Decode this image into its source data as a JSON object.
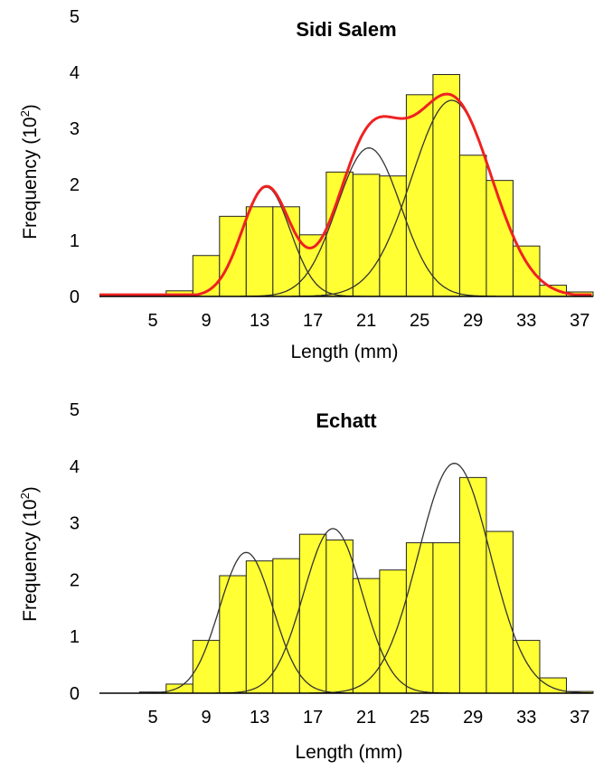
{
  "chart_data": [
    {
      "type": "bar",
      "title": "Sidi Salem",
      "xlabel": "Length (mm)",
      "ylabel": "Frequency (10",
      "ylabel_sup": "2",
      "ylabel_close": ")",
      "xlim": [
        1,
        38
      ],
      "ylim": [
        0,
        5
      ],
      "xticks": [
        5,
        9,
        13,
        17,
        21,
        25,
        29,
        33,
        37
      ],
      "yticks": [
        0,
        1,
        2,
        3,
        4,
        5
      ],
      "bin_width": 2,
      "bin_starts": [
        6,
        8,
        10,
        12,
        14,
        16,
        18,
        20,
        22,
        24,
        26,
        28,
        30,
        32,
        34,
        36
      ],
      "values": [
        0.1,
        0.73,
        1.43,
        1.6,
        1.6,
        1.1,
        2.22,
        2.18,
        2.15,
        3.6,
        3.96,
        2.52,
        2.07,
        0.9,
        0.2,
        0.08
      ],
      "bar_color": "#ffff33",
      "component_curves": [
        {
          "mean": 13.5,
          "sd": 1.8,
          "peak": 1.95
        },
        {
          "mean": 21.2,
          "sd": 2.4,
          "peak": 2.65
        },
        {
          "mean": 27.4,
          "sd": 3.0,
          "peak": 3.5
        }
      ],
      "component_color": "#333333",
      "fit_curve_color": "#ee2222"
    },
    {
      "type": "bar",
      "title": "Echatt",
      "xlabel": "Length (mm)",
      "ylabel": "Frequency (10",
      "ylabel_sup": "2",
      "ylabel_close": ")",
      "xlim": [
        1,
        38
      ],
      "ylim": [
        0,
        5
      ],
      "xticks": [
        5,
        9,
        13,
        17,
        21,
        25,
        29,
        33,
        37
      ],
      "yticks": [
        0,
        1,
        2,
        3,
        4,
        5
      ],
      "bin_width": 2,
      "bin_starts": [
        4,
        6,
        8,
        10,
        12,
        14,
        16,
        18,
        20,
        22,
        24,
        26,
        28,
        30,
        32,
        34,
        36
      ],
      "values": [
        0.02,
        0.16,
        0.93,
        2.07,
        2.33,
        2.37,
        2.8,
        2.7,
        2.02,
        2.17,
        2.65,
        2.65,
        3.8,
        2.85,
        0.93,
        0.27,
        0.03
      ],
      "bar_color": "#ffff33",
      "component_curves": [
        {
          "mean": 12.0,
          "sd": 2.0,
          "peak": 2.48
        },
        {
          "mean": 18.5,
          "sd": 2.2,
          "peak": 2.9
        },
        {
          "mean": 27.6,
          "sd": 2.7,
          "peak": 4.05
        }
      ],
      "component_color": "#333333"
    }
  ]
}
